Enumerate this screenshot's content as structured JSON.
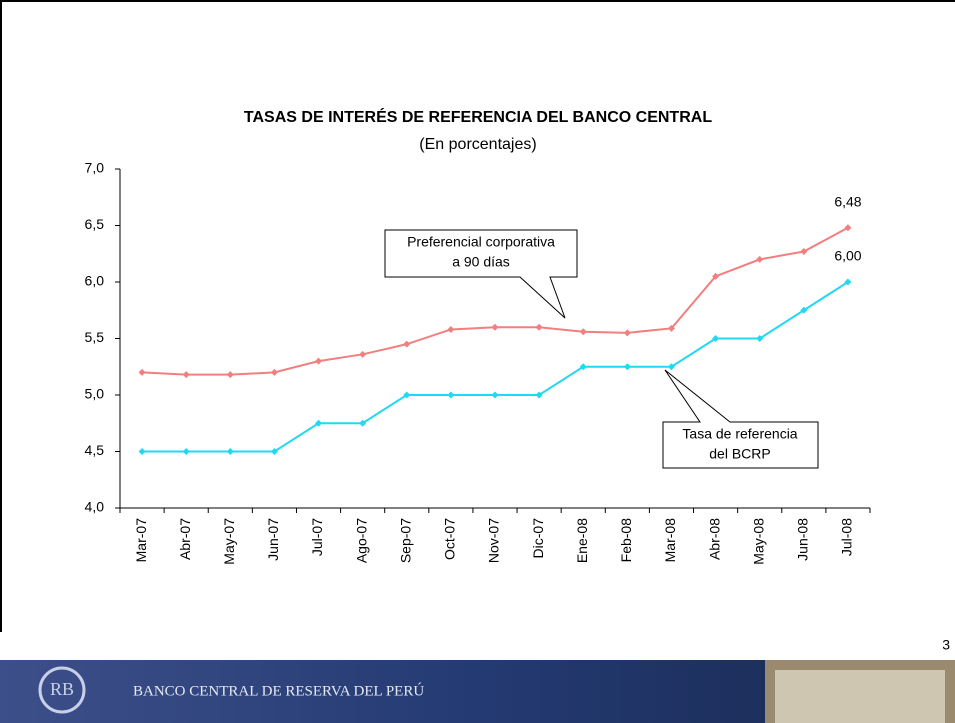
{
  "chart_data": {
    "type": "line",
    "title": "TASAS DE INTERÉS DE REFERENCIA DEL BANCO CENTRAL",
    "subtitle": "(En porcentajes)",
    "categories": [
      "Mar-07",
      "Abr-07",
      "May-07",
      "Jun-07",
      "Jul-07",
      "Ago-07",
      "Sep-07",
      "Oct-07",
      "Nov-07",
      "Dic-07",
      "Ene-08",
      "Feb-08",
      "Mar-08",
      "Abr-08",
      "May-08",
      "Jun-08",
      "Jul-08"
    ],
    "series": [
      {
        "name": "Preferencial corporativa a 90 días",
        "color": "#f27f7f",
        "values": [
          5.2,
          5.18,
          5.18,
          5.2,
          5.3,
          5.36,
          5.45,
          5.58,
          5.6,
          5.6,
          5.56,
          5.55,
          5.59,
          6.05,
          6.2,
          6.27,
          6.48
        ],
        "value_labels": [
          null,
          null,
          null,
          null,
          null,
          null,
          null,
          null,
          null,
          null,
          null,
          null,
          null,
          null,
          null,
          null,
          "6,48"
        ]
      },
      {
        "name": "Tasa de referencia del BCRP",
        "color": "#22d8f2",
        "values": [
          4.5,
          4.5,
          4.5,
          4.5,
          4.75,
          4.75,
          5.0,
          5.0,
          5.0,
          5.0,
          5.25,
          5.25,
          5.25,
          5.5,
          5.5,
          5.75,
          6.0
        ],
        "value_labels": [
          null,
          null,
          null,
          null,
          null,
          null,
          null,
          null,
          null,
          null,
          null,
          null,
          null,
          null,
          null,
          null,
          "6,00"
        ]
      }
    ],
    "ylim": [
      4,
      7
    ],
    "yticks": [
      {
        "value": 4,
        "label": "4,0"
      },
      {
        "value": 4.5,
        "label": "4,5"
      },
      {
        "value": 5,
        "label": "5,0"
      },
      {
        "value": 5.5,
        "label": "5,5"
      },
      {
        "value": 6,
        "label": "6,0"
      },
      {
        "value": 6.5,
        "label": "6,5"
      },
      {
        "value": 7,
        "label": "7,0"
      }
    ],
    "annotations": [
      {
        "lines": [
          "Preferencial corporativa",
          "a 90 días"
        ]
      },
      {
        "lines": [
          "Tasa de referencia",
          "del BCRP"
        ]
      }
    ]
  },
  "footer": {
    "institution": "BANCO CENTRAL DE RESERVA DEL PERÚ",
    "page_number": "3"
  }
}
